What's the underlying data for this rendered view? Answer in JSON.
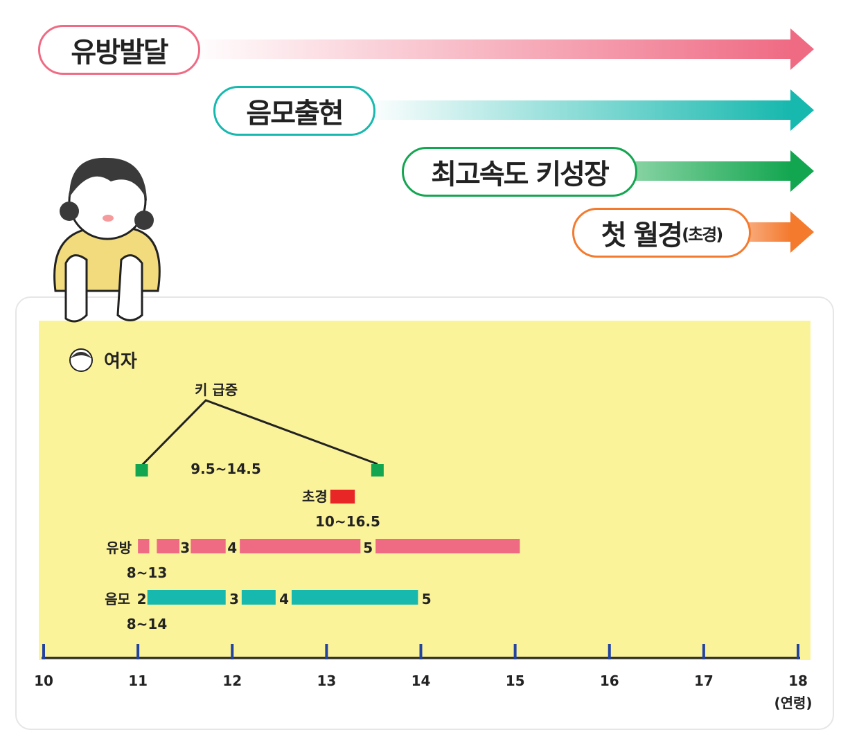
{
  "stages": [
    {
      "label": "유방발달",
      "color": "#ef6b84"
    },
    {
      "label": "음모출현",
      "color": "#17b8ae"
    },
    {
      "label": "최고속도 키성장",
      "color": "#13a650"
    },
    {
      "label": "첫 월경",
      "sub": "(초경)",
      "color": "#f47a2e"
    }
  ],
  "chart_data": {
    "type": "timeline",
    "legend": "여자",
    "xlabel": "(연령)",
    "xlim": [
      10,
      18
    ],
    "ticks": [
      "10",
      "11",
      "12",
      "13",
      "14",
      "15",
      "16",
      "17",
      "18"
    ],
    "growth_spurt": {
      "label": "키 급증",
      "range_label": "9.5~14.5",
      "start": 11.04,
      "peak": 11.72,
      "end": 13.54,
      "color": "#13a650"
    },
    "menarche": {
      "label": "초경",
      "range_label": "10~16.5",
      "start": 13.04,
      "end": 13.3,
      "color": "#e82626"
    },
    "breast": {
      "label": "유방",
      "range_label": "8~13",
      "color": "#ef6b84",
      "segments": [
        [
          11.0,
          11.12
        ],
        [
          11.2,
          11.44
        ],
        [
          11.56,
          11.93
        ],
        [
          12.08,
          13.36
        ],
        [
          13.52,
          15.05
        ]
      ],
      "stage_labels": [
        {
          "text": "3",
          "at": 11.5
        },
        {
          "text": "4",
          "at": 12.0
        },
        {
          "text": "5",
          "at": 13.44
        }
      ]
    },
    "pubic_hair": {
      "label": "음모",
      "range_label": "8~14",
      "color": "#17b8ae",
      "segments": [
        [
          11.1,
          11.93
        ],
        [
          12.1,
          12.46
        ],
        [
          12.63,
          13.97
        ]
      ],
      "stage_labels": [
        {
          "text": "2",
          "at": 11.04
        },
        {
          "text": "3",
          "at": 12.02
        },
        {
          "text": "4",
          "at": 12.55
        },
        {
          "text": "5",
          "at": 14.06
        }
      ]
    }
  }
}
